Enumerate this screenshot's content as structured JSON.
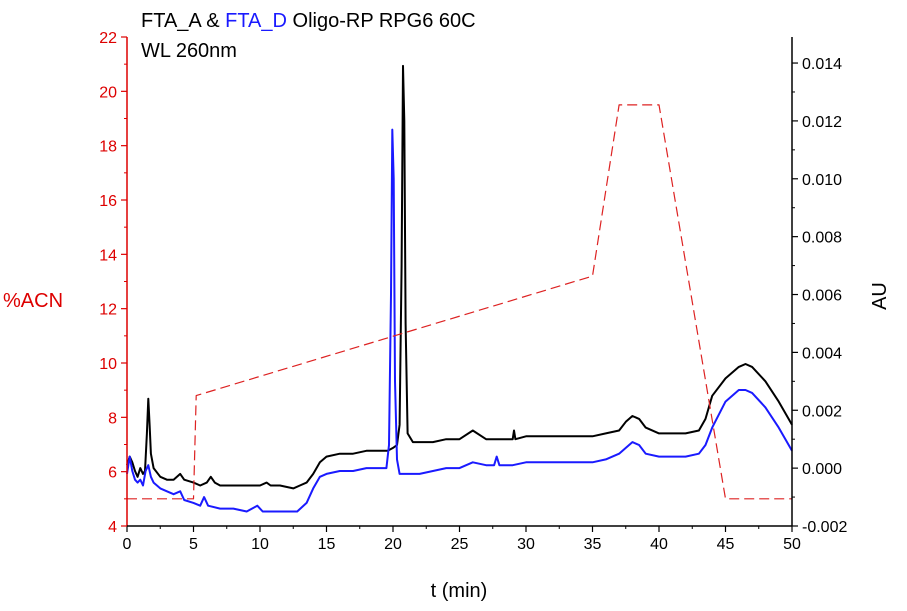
{
  "chart_data": {
    "type": "line",
    "title": {
      "part1": "FTA_A",
      "part2": " & ",
      "part3": "FTA_D",
      "part4": " Oligo-RP RPG6 60C"
    },
    "subtitle": "WL 260nm",
    "xlabel": "t (min)",
    "ylabel_left": "%ACN",
    "ylabel_right": "AU",
    "xlim": [
      0,
      50
    ],
    "ylim_left": [
      4,
      22
    ],
    "ylim_right": [
      -0.002,
      0.0149
    ],
    "x_ticks": [
      "0",
      "5",
      "10",
      "15",
      "20",
      "25",
      "30",
      "35",
      "40",
      "45",
      "50"
    ],
    "y_left_ticks": [
      "4",
      "6",
      "8",
      "10",
      "12",
      "14",
      "16",
      "18",
      "20",
      "22"
    ],
    "y_right_ticks": [
      "-0.002",
      "0.000",
      "0.002",
      "0.004",
      "0.006",
      "0.008",
      "0.010",
      "0.012",
      "0.014"
    ],
    "colors": {
      "FTA_A": "#000000",
      "FTA_D": "#1a1aff",
      "gradient": "#dd2222",
      "left_axis": "#dd0000",
      "right_axis": "#000000"
    },
    "series": [
      {
        "name": "FTA_A",
        "axis": "right",
        "style": "solid",
        "points": [
          [
            0.0,
            0.0001
          ],
          [
            0.2,
            0.0004
          ],
          [
            0.4,
            0.0002
          ],
          [
            0.6,
            -0.0001
          ],
          [
            0.8,
            -0.0003
          ],
          [
            1.0,
            0.0
          ],
          [
            1.2,
            -0.0002
          ],
          [
            1.35,
            -0.0001
          ],
          [
            1.5,
            0.0012
          ],
          [
            1.6,
            0.0024
          ],
          [
            1.7,
            0.0015
          ],
          [
            1.8,
            0.0005
          ],
          [
            2.0,
            0.0
          ],
          [
            2.5,
            -0.0003
          ],
          [
            3.0,
            -0.0004
          ],
          [
            3.5,
            -0.0004
          ],
          [
            4.0,
            -0.0002
          ],
          [
            4.3,
            -0.0004
          ],
          [
            5.0,
            -0.0005
          ],
          [
            5.5,
            -0.0006
          ],
          [
            6.0,
            -0.0005
          ],
          [
            6.3,
            -0.0003
          ],
          [
            6.6,
            -0.0005
          ],
          [
            7.0,
            -0.0006
          ],
          [
            8.0,
            -0.0006
          ],
          [
            9.0,
            -0.0006
          ],
          [
            10.0,
            -0.0006
          ],
          [
            10.5,
            -0.0005
          ],
          [
            10.8,
            -0.0006
          ],
          [
            11.5,
            -0.0006
          ],
          [
            12.5,
            -0.0007
          ],
          [
            13.0,
            -0.0006
          ],
          [
            13.5,
            -0.0005
          ],
          [
            14.0,
            -0.0002
          ],
          [
            14.5,
            0.0002
          ],
          [
            15.0,
            0.0004
          ],
          [
            16.0,
            0.0005
          ],
          [
            17.0,
            0.0005
          ],
          [
            18.0,
            0.0006
          ],
          [
            19.0,
            0.0006
          ],
          [
            19.6,
            0.0006
          ],
          [
            20.0,
            0.0007
          ],
          [
            20.3,
            0.0008
          ],
          [
            20.5,
            0.0015
          ],
          [
            20.65,
            0.007
          ],
          [
            20.75,
            0.0139
          ],
          [
            20.85,
            0.012
          ],
          [
            20.95,
            0.005
          ],
          [
            21.1,
            0.0012
          ],
          [
            21.5,
            0.0009
          ],
          [
            22.0,
            0.0009
          ],
          [
            23.0,
            0.0009
          ],
          [
            24.0,
            0.001
          ],
          [
            25.0,
            0.001
          ],
          [
            26.0,
            0.0013
          ],
          [
            27.0,
            0.001
          ],
          [
            28.0,
            0.001
          ],
          [
            29.0,
            0.001
          ],
          [
            29.1,
            0.0013
          ],
          [
            29.2,
            0.001
          ],
          [
            30.0,
            0.0011
          ],
          [
            32.0,
            0.0011
          ],
          [
            34.0,
            0.0011
          ],
          [
            35.0,
            0.0011
          ],
          [
            36.0,
            0.0012
          ],
          [
            37.0,
            0.0013
          ],
          [
            37.5,
            0.0016
          ],
          [
            38.0,
            0.0018
          ],
          [
            38.5,
            0.0017
          ],
          [
            39.0,
            0.0014
          ],
          [
            40.0,
            0.0012
          ],
          [
            41.0,
            0.0012
          ],
          [
            42.0,
            0.0012
          ],
          [
            43.0,
            0.0013
          ],
          [
            43.5,
            0.0017
          ],
          [
            44.0,
            0.0025
          ],
          [
            45.0,
            0.0031
          ],
          [
            46.0,
            0.0035
          ],
          [
            46.5,
            0.0036
          ],
          [
            47.0,
            0.0035
          ],
          [
            48.0,
            0.003
          ],
          [
            49.0,
            0.0023
          ],
          [
            50.0,
            0.0015
          ]
        ]
      },
      {
        "name": "FTA_D",
        "axis": "right",
        "style": "solid",
        "points": [
          [
            0.0,
            -0.0002
          ],
          [
            0.2,
            0.0004
          ],
          [
            0.4,
            -0.0001
          ],
          [
            0.6,
            -0.0004
          ],
          [
            0.8,
            -0.0005
          ],
          [
            1.0,
            -0.0004
          ],
          [
            1.2,
            -0.0006
          ],
          [
            1.4,
            -0.0001
          ],
          [
            1.6,
            0.0001
          ],
          [
            1.8,
            -0.0003
          ],
          [
            2.0,
            -0.0005
          ],
          [
            2.5,
            -0.0007
          ],
          [
            3.0,
            -0.0008
          ],
          [
            3.5,
            -0.0009
          ],
          [
            4.0,
            -0.0008
          ],
          [
            4.3,
            -0.0011
          ],
          [
            5.0,
            -0.0012
          ],
          [
            5.5,
            -0.0013
          ],
          [
            5.8,
            -0.001
          ],
          [
            6.1,
            -0.0013
          ],
          [
            7.0,
            -0.0014
          ],
          [
            8.0,
            -0.0014
          ],
          [
            9.0,
            -0.0015
          ],
          [
            9.8,
            -0.0013
          ],
          [
            10.2,
            -0.0015
          ],
          [
            11.0,
            -0.0015
          ],
          [
            12.0,
            -0.0015
          ],
          [
            12.8,
            -0.0015
          ],
          [
            13.5,
            -0.0012
          ],
          [
            14.0,
            -0.0007
          ],
          [
            14.5,
            -0.0003
          ],
          [
            15.0,
            -0.0002
          ],
          [
            16.0,
            -0.0001
          ],
          [
            17.0,
            -0.0001
          ],
          [
            18.0,
            0.0
          ],
          [
            19.0,
            0.0
          ],
          [
            19.5,
            0.0
          ],
          [
            19.7,
            0.0008
          ],
          [
            19.85,
            0.006
          ],
          [
            19.95,
            0.0117
          ],
          [
            20.05,
            0.01
          ],
          [
            20.15,
            0.003
          ],
          [
            20.3,
            0.0003
          ],
          [
            20.5,
            -0.0002
          ],
          [
            21.0,
            -0.0002
          ],
          [
            22.0,
            -0.0002
          ],
          [
            23.0,
            -0.0001
          ],
          [
            24.0,
            0.0
          ],
          [
            25.0,
            0.0
          ],
          [
            26.0,
            0.0002
          ],
          [
            27.0,
            0.0001
          ],
          [
            27.6,
            0.0001
          ],
          [
            27.8,
            0.0004
          ],
          [
            28.0,
            0.0001
          ],
          [
            29.0,
            0.0001
          ],
          [
            30.0,
            0.0002
          ],
          [
            32.0,
            0.0002
          ],
          [
            34.0,
            0.0002
          ],
          [
            35.0,
            0.0002
          ],
          [
            36.0,
            0.0003
          ],
          [
            37.0,
            0.0005
          ],
          [
            37.5,
            0.0007
          ],
          [
            38.0,
            0.0009
          ],
          [
            38.5,
            0.0008
          ],
          [
            39.0,
            0.0005
          ],
          [
            40.0,
            0.0004
          ],
          [
            41.0,
            0.0004
          ],
          [
            42.0,
            0.0004
          ],
          [
            43.0,
            0.0005
          ],
          [
            43.5,
            0.0008
          ],
          [
            44.0,
            0.0014
          ],
          [
            45.0,
            0.0023
          ],
          [
            46.0,
            0.0027
          ],
          [
            46.5,
            0.0027
          ],
          [
            47.0,
            0.0026
          ],
          [
            48.0,
            0.0021
          ],
          [
            49.0,
            0.0014
          ],
          [
            50.0,
            0.0006
          ]
        ]
      },
      {
        "name": "gradient",
        "axis": "left",
        "style": "dashed",
        "points": [
          [
            0,
            5
          ],
          [
            5,
            5
          ],
          [
            5.2,
            8.8
          ],
          [
            35,
            13.2
          ],
          [
            37,
            19.5
          ],
          [
            40,
            19.5
          ],
          [
            45,
            5
          ],
          [
            50,
            5
          ]
        ]
      }
    ]
  }
}
